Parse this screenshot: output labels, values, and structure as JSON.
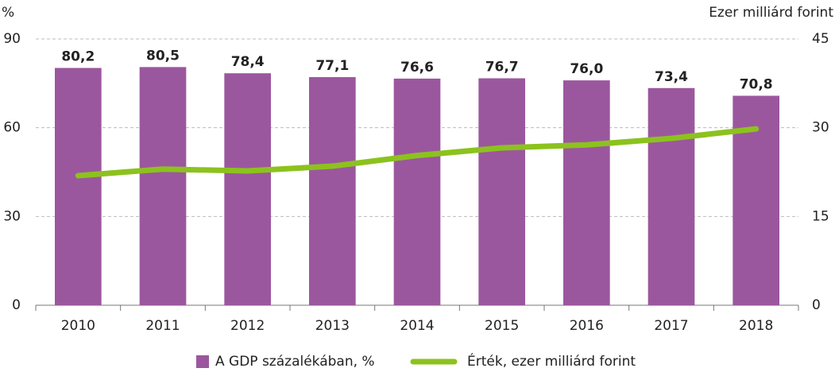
{
  "chart_data": {
    "type": "bar",
    "ylabel": "%",
    "y2label": "Ezer milliárd forint",
    "categories": [
      "2010",
      "2011",
      "2012",
      "2013",
      "2014",
      "2015",
      "2016",
      "2017",
      "2018"
    ],
    "series": [
      {
        "name": "A GDP százalékában, %",
        "type": "bar",
        "color": "#9b579e",
        "values": [
          80.2,
          80.5,
          78.4,
          77.1,
          76.6,
          76.7,
          76.0,
          73.4,
          70.8
        ],
        "value_labels": [
          "80,2",
          "80,5",
          "78,4",
          "77,1",
          "76,6",
          "76,7",
          "76,0",
          "73,4",
          "70,8"
        ]
      },
      {
        "name": "Érték, ezer milliárd forint",
        "type": "line",
        "axis": "y2",
        "color": "#8cc21e",
        "values": [
          21.9,
          23.0,
          22.7,
          23.5,
          25.3,
          26.6,
          27.1,
          28.2,
          29.8
        ]
      }
    ],
    "ylim": [
      0,
      90
    ],
    "yticks": [
      0,
      30,
      60,
      90
    ],
    "y2lim": [
      0,
      45
    ],
    "y2ticks": [
      0,
      15,
      30,
      45
    ],
    "grid": true,
    "legend": "bottom"
  }
}
